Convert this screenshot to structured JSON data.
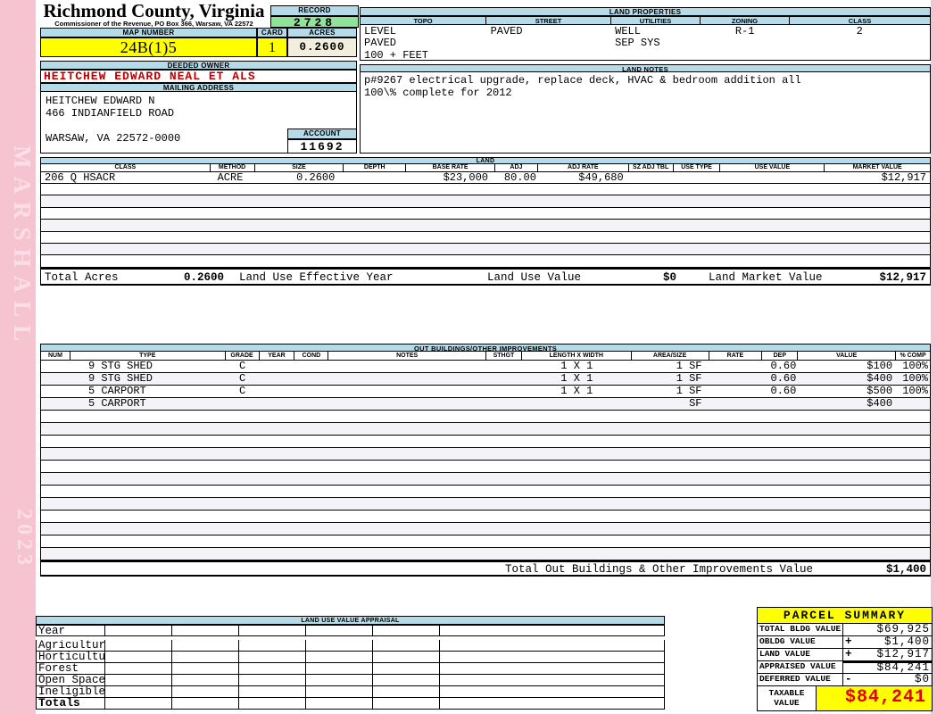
{
  "sidebar": {
    "vendor": "MARSHALL",
    "year": "2023"
  },
  "header": {
    "county": "Richmond County, Virginia",
    "commissioner_line": "Commissioner of the Revenue, PO Box 366, Warsaw, VA 22572",
    "record_label": "RECORD",
    "record_value": "2728",
    "map_number_label": "MAP NUMBER",
    "map_number_value": "24B(1)5",
    "card_label": "CARD",
    "card_value": "1",
    "acres_label": "ACRES",
    "acres_value": "0.2600"
  },
  "land_properties": {
    "title": "LAND PROPERTIES",
    "columns": [
      {
        "label": "TOPO",
        "lines": [
          "LEVEL",
          "PAVED",
          "100 + FEET"
        ]
      },
      {
        "label": "STREET",
        "lines": [
          "PAVED"
        ]
      },
      {
        "label": "UTILITIES",
        "lines": [
          "WELL",
          "SEP SYS"
        ]
      },
      {
        "label": "ZONING",
        "lines": [
          "R-1"
        ]
      },
      {
        "label": "CLASS",
        "lines": [
          "2"
        ]
      }
    ]
  },
  "owner": {
    "deeded_owner_label": "DEEDED OWNER",
    "deeded_owner": "HEITCHEW EDWARD NEAL ET ALS",
    "mailing_address_label": "MAILING ADDRESS",
    "mailing_lines": [
      "HEITCHEW EDWARD N",
      "466 INDIANFIELD ROAD",
      "",
      "WARSAW, VA 22572-0000"
    ],
    "account_label": "ACCOUNT",
    "account_value": "11692"
  },
  "land_notes": {
    "title": "LAND NOTES",
    "lines": [
      "p#9267 electrical upgrade, replace deck, HVAC & bedroom addition all",
      "100\\% complete for 2012"
    ]
  },
  "land": {
    "title": "LAND",
    "headers": [
      "CLASS",
      "METHOD",
      "SIZE",
      "DEPTH",
      "BASE RATE",
      "ADJ",
      "ADJ RATE",
      "SZ ADJ TBL",
      "USE TYPE",
      "USE VALUE",
      "MARKET VALUE"
    ],
    "rows": [
      [
        "206 Q HSACR",
        "ACRE",
        "0.2600",
        "",
        "$23,000",
        "80.00",
        "$49,680",
        "",
        "",
        "",
        "$12,917"
      ]
    ],
    "totals": {
      "total_acres_label": "Total Acres",
      "total_acres": "0.2600",
      "effective_year_label": "Land Use Effective Year",
      "use_value_label": "Land Use Value",
      "use_value": "$0",
      "market_value_label": "Land Market Value",
      "market_value": "$12,917"
    }
  },
  "out_buildings": {
    "title": "OUT BUILDINGS/OTHER IMPROVEMENTS",
    "headers": [
      "NUM",
      "TYPE",
      "GRADE",
      "YEAR",
      "COND",
      "NOTES",
      "STHGT",
      "LENGTH X WIDTH",
      "AREA/SIZE",
      "RATE",
      "DEP",
      "VALUE",
      "% COMP"
    ],
    "rows": [
      [
        "",
        "9 STG SHED",
        "C",
        "",
        "",
        "",
        "",
        "1 X 1",
        "1 SF",
        "",
        "0.60",
        "$100",
        "100%"
      ],
      [
        "",
        "9 STG SHED",
        "C",
        "",
        "",
        "",
        "",
        "1 X 1",
        "1 SF",
        "",
        "0.60",
        "$400",
        "100%"
      ],
      [
        "",
        "5 CARPORT",
        "C",
        "",
        "",
        "",
        "",
        "1 X 1",
        "1 SF",
        "",
        "0.60",
        "$500",
        "100%"
      ],
      [
        "",
        "5 CARPORT",
        "",
        "",
        "",
        "",
        "",
        "",
        "SF",
        "",
        "",
        "$400",
        ""
      ]
    ],
    "total_label": "Total Out Buildings & Other Improvements Value",
    "total_value": "$1,400"
  },
  "land_use_appraisal": {
    "title": "LAND USE VALUE APPRAISAL",
    "row_labels": [
      "Year",
      "Agriculture",
      "Horticulture",
      "Forest",
      "Open Space",
      "Ineligible",
      "Totals"
    ]
  },
  "parcel_summary": {
    "title": "PARCEL SUMMARY",
    "rows": [
      {
        "label": "TOTAL BLDG VALUE",
        "op": "",
        "value": "$69,925"
      },
      {
        "label": "OBLDG VALUE",
        "op": "+",
        "value": "$1,400"
      },
      {
        "label": "LAND VALUE",
        "op": "+",
        "value": "$12,917"
      },
      {
        "label": "APPRAISED VALUE",
        "op": "",
        "value": "$84,241"
      },
      {
        "label": "DEFERRED VALUE",
        "op": "-",
        "value": "$0"
      }
    ],
    "taxable_label": "TAXABLE\nVALUE",
    "taxable_value": "$84,241"
  }
}
